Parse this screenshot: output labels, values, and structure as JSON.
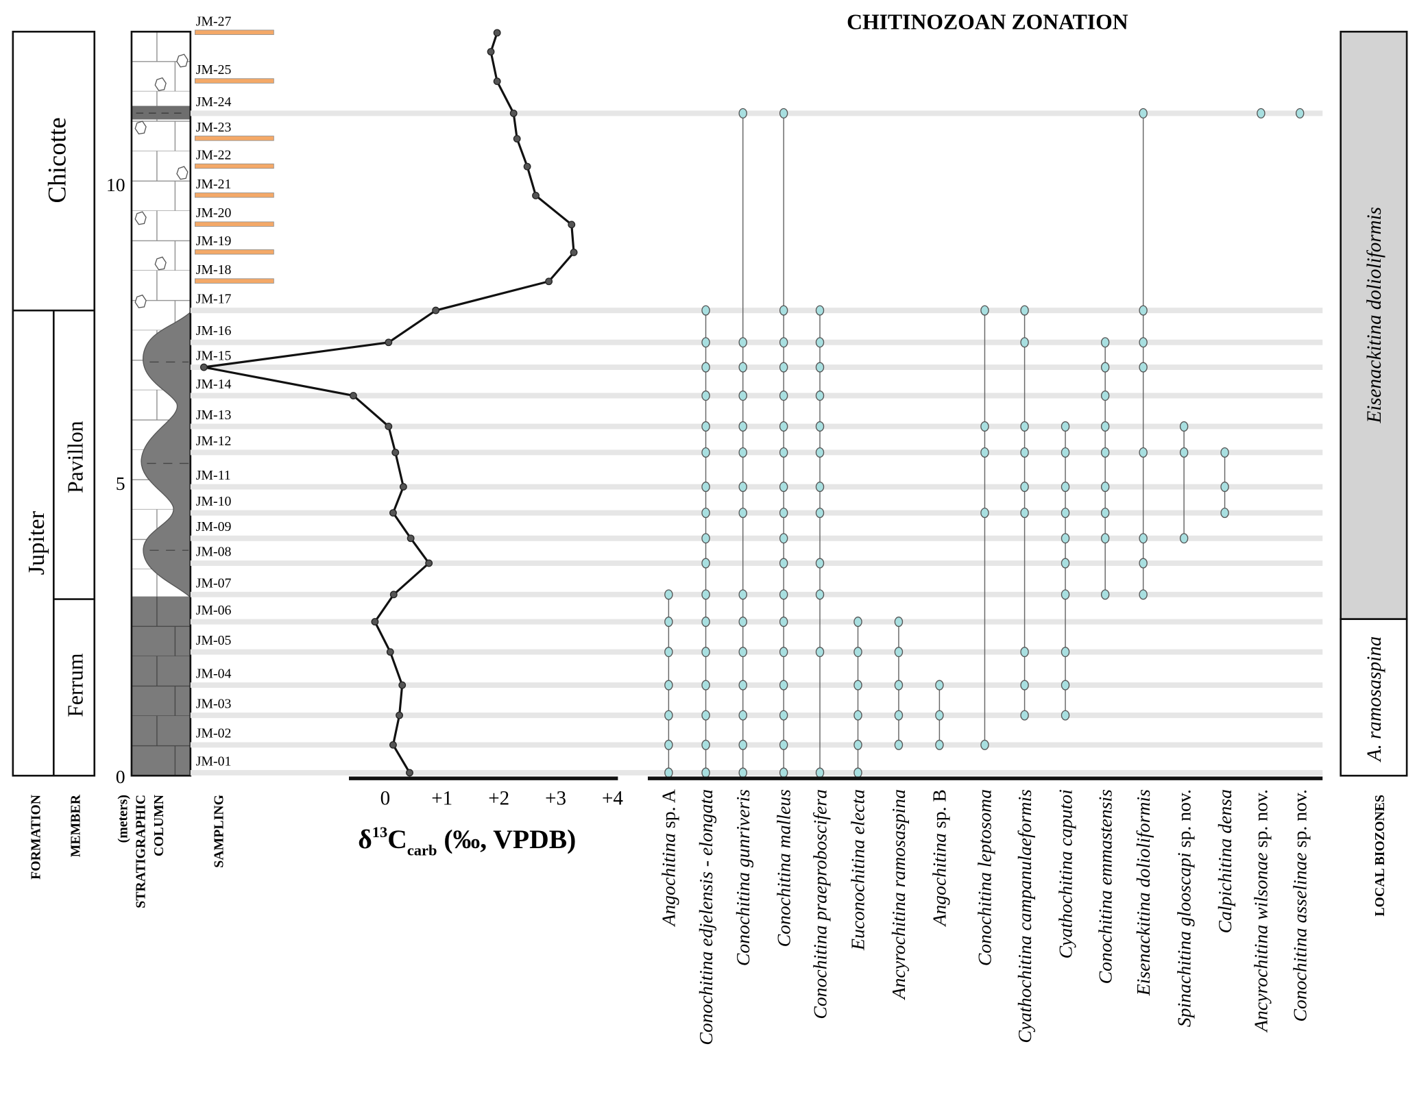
{
  "title": "CHITINOZOAN ZONATION",
  "columns": {
    "formation": "FORMATION",
    "member": "MEMBER",
    "meters": "(meters)",
    "strat1": "STRATIGRAPHIC",
    "strat2": "COLUMN",
    "sampling": "SAMPLING",
    "biozones": "LOCAL BIOZONES"
  },
  "formations": [
    {
      "name": "Chicotte",
      "from_m": 7.86,
      "to_m": 12.57
    },
    {
      "name": "Jupiter",
      "from_m": 0,
      "to_m": 7.86
    }
  ],
  "members": [
    {
      "name": "Pavillon",
      "from_m": 3.04,
      "to_m": 7.86
    },
    {
      "name": "Ferrum",
      "from_m": 0,
      "to_m": 3.04
    }
  ],
  "biozones": [
    {
      "name": "Eisenackitina dolioliformis",
      "from_m": 2.7,
      "to_m": 12.57,
      "fill": "#d3d3d3"
    },
    {
      "name": "A. ramosaspina",
      "from_m": 0,
      "to_m": 2.7,
      "fill": "#ffffff"
    }
  ],
  "depth_ticks": [
    "0",
    "5",
    "10"
  ],
  "d13c_axis": {
    "ticks": [
      "0",
      "+1",
      "+2",
      "+3",
      "+4"
    ],
    "label_delta": "δ",
    "label_sup": "13",
    "label_c": "C",
    "label_sub": "carb",
    "label_rest": " (‰, VPDB)"
  },
  "chart_data": {
    "type": "line",
    "x_axis": "δ13Ccarb (‰, VPDB)",
    "y_axis": "meters",
    "xlim": [
      -0.6,
      4
    ],
    "ylim": [
      0,
      12.57
    ],
    "samples": [
      {
        "id": "JM-27",
        "depth": 12.55,
        "d13c": 1.97,
        "marker": "orange-bar"
      },
      {
        "id": null,
        "depth": 12.23,
        "d13c": 1.86,
        "marker": "none"
      },
      {
        "id": "JM-25",
        "depth": 11.73,
        "d13c": 1.97,
        "marker": "orange-bar"
      },
      {
        "id": "JM-24",
        "depth": 11.19,
        "d13c": 2.26,
        "marker": "grey-line"
      },
      {
        "id": "JM-23",
        "depth": 10.76,
        "d13c": 2.32,
        "marker": "orange-bar"
      },
      {
        "id": "JM-22",
        "depth": 10.29,
        "d13c": 2.5,
        "marker": "orange-bar"
      },
      {
        "id": "JM-21",
        "depth": 9.8,
        "d13c": 2.65,
        "marker": "orange-bar"
      },
      {
        "id": "JM-20",
        "depth": 9.31,
        "d13c": 3.28,
        "marker": "orange-bar"
      },
      {
        "id": "JM-19",
        "depth": 8.84,
        "d13c": 3.32,
        "marker": "orange-bar"
      },
      {
        "id": "JM-18",
        "depth": 8.35,
        "d13c": 2.88,
        "marker": "orange-bar"
      },
      {
        "id": "JM-17",
        "depth": 7.86,
        "d13c": 0.89,
        "marker": "grey-line"
      },
      {
        "id": "JM-16",
        "depth": 7.32,
        "d13c": 0.06,
        "marker": "grey-line"
      },
      {
        "id": "JM-15",
        "depth": 6.9,
        "d13c": -3.19,
        "marker": "grey-line"
      },
      {
        "id": "JM-14",
        "depth": 6.42,
        "d13c": -0.56,
        "marker": "grey-line"
      },
      {
        "id": "JM-13",
        "depth": 5.9,
        "d13c": 0.06,
        "marker": "grey-line"
      },
      {
        "id": "JM-12",
        "depth": 5.46,
        "d13c": 0.18,
        "marker": "grey-line"
      },
      {
        "id": "JM-11",
        "depth": 4.88,
        "d13c": 0.32,
        "marker": "grey-line"
      },
      {
        "id": "JM-10",
        "depth": 4.44,
        "d13c": 0.14,
        "marker": "grey-line"
      },
      {
        "id": "JM-09",
        "depth": 4.01,
        "d13c": 0.45,
        "marker": "grey-line"
      },
      {
        "id": "JM-08",
        "depth": 3.59,
        "d13c": 0.77,
        "marker": "grey-line"
      },
      {
        "id": "JM-07",
        "depth": 3.06,
        "d13c": 0.15,
        "marker": "grey-line"
      },
      {
        "id": "JM-06",
        "depth": 2.6,
        "d13c": -0.18,
        "marker": "grey-line"
      },
      {
        "id": "JM-05",
        "depth": 2.09,
        "d13c": 0.09,
        "marker": "grey-line"
      },
      {
        "id": "JM-04",
        "depth": 1.53,
        "d13c": 0.3,
        "marker": "grey-line"
      },
      {
        "id": "JM-03",
        "depth": 1.02,
        "d13c": 0.25,
        "marker": "grey-line"
      },
      {
        "id": "JM-02",
        "depth": 0.52,
        "d13c": 0.14,
        "marker": "grey-line"
      },
      {
        "id": "JM-01",
        "depth": 0.05,
        "d13c": 0.43,
        "marker": "grey-line"
      }
    ],
    "species": [
      {
        "genus": "Angochitina",
        "suffix": "sp. A",
        "occurrences": [
          "JM-01",
          "JM-02",
          "JM-03",
          "JM-04",
          "JM-05",
          "JM-06",
          "JM-07"
        ]
      },
      {
        "genus": "Conochitina edjelensis - elongata",
        "suffix": "",
        "occurrences": [
          "JM-01",
          "JM-02",
          "JM-03",
          "JM-04",
          "JM-05",
          "JM-06",
          "JM-07",
          "JM-08",
          "JM-09",
          "JM-10",
          "JM-11",
          "JM-12",
          "JM-13",
          "JM-14",
          "JM-15",
          "JM-16",
          "JM-17"
        ]
      },
      {
        "genus": "Conochitina gunriveris",
        "suffix": "",
        "occurrences": [
          "JM-01",
          "JM-02",
          "JM-03",
          "JM-04",
          "JM-05",
          "JM-06",
          "JM-07",
          "JM-10",
          "JM-11",
          "JM-12",
          "JM-13",
          "JM-14",
          "JM-15",
          "JM-16",
          "JM-24"
        ]
      },
      {
        "genus": "Conochitina malleus",
        "suffix": "",
        "occurrences": [
          "JM-01",
          "JM-02",
          "JM-03",
          "JM-04",
          "JM-05",
          "JM-06",
          "JM-07",
          "JM-08",
          "JM-09",
          "JM-10",
          "JM-11",
          "JM-12",
          "JM-13",
          "JM-14",
          "JM-15",
          "JM-16",
          "JM-17",
          "JM-24"
        ]
      },
      {
        "genus": "Conochitina praeproboscifera",
        "suffix": "",
        "occurrences": [
          "JM-01",
          "JM-05",
          "JM-07",
          "JM-08",
          "JM-10",
          "JM-11",
          "JM-12",
          "JM-13",
          "JM-14",
          "JM-15",
          "JM-16",
          "JM-17"
        ]
      },
      {
        "genus": "Euconochitina electa",
        "suffix": "",
        "occurrences": [
          "JM-01",
          "JM-02",
          "JM-03",
          "JM-04",
          "JM-05",
          "JM-06"
        ]
      },
      {
        "genus": "Ancyrochitina ramosaspina",
        "suffix": "",
        "occurrences": [
          "JM-02",
          "JM-03",
          "JM-04",
          "JM-05",
          "JM-06"
        ]
      },
      {
        "genus": "Angochitina",
        "suffix": "sp. B",
        "occurrences": [
          "JM-02",
          "JM-03",
          "JM-04"
        ]
      },
      {
        "genus": "Conochitina leptosoma",
        "suffix": "",
        "occurrences": [
          "JM-02",
          "JM-10",
          "JM-12",
          "JM-13",
          "JM-17"
        ]
      },
      {
        "genus": "Cyathochitina campanulaeformis",
        "suffix": "",
        "occurrences": [
          "JM-03",
          "JM-04",
          "JM-05",
          "JM-10",
          "JM-11",
          "JM-12",
          "JM-13",
          "JM-16",
          "JM-17"
        ]
      },
      {
        "genus": "Cyathochitina caputoi",
        "suffix": "",
        "occurrences": [
          "JM-03",
          "JM-04",
          "JM-05",
          "JM-07",
          "JM-08",
          "JM-09",
          "JM-10",
          "JM-11",
          "JM-12",
          "JM-13"
        ]
      },
      {
        "genus": "Conochitina emmastensis",
        "suffix": "",
        "occurrences": [
          "JM-07",
          "JM-09",
          "JM-10",
          "JM-11",
          "JM-12",
          "JM-13",
          "JM-14",
          "JM-15",
          "JM-16"
        ]
      },
      {
        "genus": "Eisenackitina dolioliformis",
        "suffix": "",
        "occurrences": [
          "JM-07",
          "JM-08",
          "JM-09",
          "JM-12",
          "JM-15",
          "JM-16",
          "JM-17",
          "JM-24"
        ]
      },
      {
        "genus": "Spinachitina glooscapi",
        "suffix": "sp. nov.",
        "occurrences": [
          "JM-09",
          "JM-12",
          "JM-13"
        ]
      },
      {
        "genus": "Calpichitina densa",
        "suffix": "",
        "occurrences": [
          "JM-10",
          "JM-11",
          "JM-12"
        ]
      },
      {
        "genus": "Ancyrochitina wilsonae",
        "suffix": "sp. nov.",
        "occurrences": [
          "JM-24"
        ]
      },
      {
        "genus": "Conochitina asselinae",
        "suffix": "sp. nov.",
        "occurrences": [
          "JM-24"
        ]
      }
    ]
  },
  "colors": {
    "occurrence_dot": "#a8dfe0",
    "sample_line": "#e6e6e6",
    "sample_bar": "#f4a968",
    "shale": "#7b7b7b",
    "biozone_upper": "#d3d3d3"
  }
}
